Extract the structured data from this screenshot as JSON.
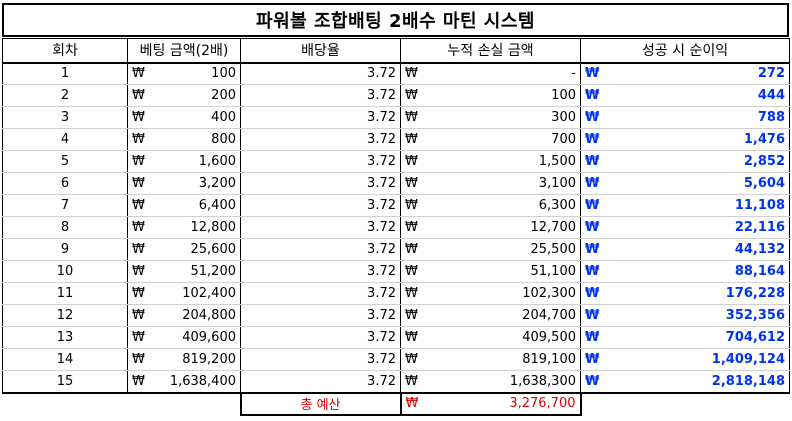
{
  "title": "파워볼 조합배팅 2배수 마틴 시스템",
  "currency_symbol": "₩",
  "headers": [
    "회차",
    "베팅 금액(2배)",
    "배당율",
    "누적 손실 금액",
    "성공 시 순이익"
  ],
  "rows": [
    {
      "round": "1",
      "bet": "100",
      "odds": "3.72",
      "loss": "-",
      "profit": "272"
    },
    {
      "round": "2",
      "bet": "200",
      "odds": "3.72",
      "loss": "100",
      "profit": "444"
    },
    {
      "round": "3",
      "bet": "400",
      "odds": "3.72",
      "loss": "300",
      "profit": "788"
    },
    {
      "round": "4",
      "bet": "800",
      "odds": "3.72",
      "loss": "700",
      "profit": "1,476"
    },
    {
      "round": "5",
      "bet": "1,600",
      "odds": "3.72",
      "loss": "1,500",
      "profit": "2,852"
    },
    {
      "round": "6",
      "bet": "3,200",
      "odds": "3.72",
      "loss": "3,100",
      "profit": "5,604"
    },
    {
      "round": "7",
      "bet": "6,400",
      "odds": "3.72",
      "loss": "6,300",
      "profit": "11,108"
    },
    {
      "round": "8",
      "bet": "12,800",
      "odds": "3.72",
      "loss": "12,700",
      "profit": "22,116"
    },
    {
      "round": "9",
      "bet": "25,600",
      "odds": "3.72",
      "loss": "25,500",
      "profit": "44,132"
    },
    {
      "round": "10",
      "bet": "51,200",
      "odds": "3.72",
      "loss": "51,100",
      "profit": "88,164"
    },
    {
      "round": "11",
      "bet": "102,400",
      "odds": "3.72",
      "loss": "102,300",
      "profit": "176,228"
    },
    {
      "round": "12",
      "bet": "204,800",
      "odds": "3.72",
      "loss": "204,700",
      "profit": "352,356"
    },
    {
      "round": "13",
      "bet": "409,600",
      "odds": "3.72",
      "loss": "409,500",
      "profit": "704,612"
    },
    {
      "round": "14",
      "bet": "819,200",
      "odds": "3.72",
      "loss": "819,100",
      "profit": "1,409,124"
    },
    {
      "round": "15",
      "bet": "1,638,400",
      "odds": "3.72",
      "loss": "1,638,300",
      "profit": "2,818,148"
    }
  ],
  "total_budget": {
    "label": "총 예산",
    "value": "3,276,700"
  },
  "colors": {
    "profit": "#0033ee",
    "budget": "#e00000",
    "border": "#000000"
  }
}
